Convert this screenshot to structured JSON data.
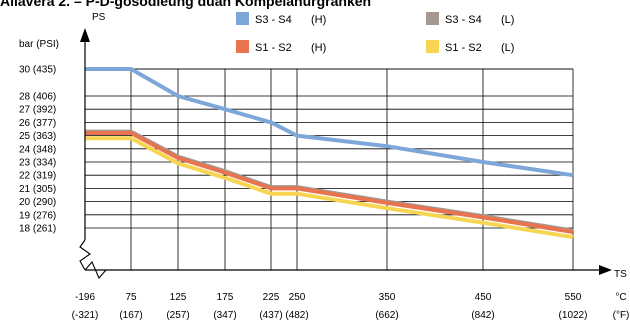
{
  "title": "Allavera 2. – P-D-gosodleung duan Kompelanurgranken",
  "chart_data": {
    "type": "line",
    "yaxis_name": "PS",
    "yaxis_unit": "bar (PSI)",
    "xaxis_name": "TS",
    "xaxis_units": [
      "°C",
      "(°F)"
    ],
    "y_ticks": [
      {
        "value": 30,
        "label": "30 (435)"
      },
      {
        "value": 28,
        "label": "28 (406)"
      },
      {
        "value": 27,
        "label": "27 (392)"
      },
      {
        "value": 26,
        "label": "26 (377)"
      },
      {
        "value": 25,
        "label": "25 (363)"
      },
      {
        "value": 24,
        "label": "24 (348)"
      },
      {
        "value": 23,
        "label": "23 (334)"
      },
      {
        "value": 22,
        "label": "22 (319)"
      },
      {
        "value": 21,
        "label": "21 (305)"
      },
      {
        "value": 20,
        "label": "20 (290)"
      },
      {
        "value": 19,
        "label": "19 (276)"
      },
      {
        "value": 18,
        "label": "18 (261)"
      }
    ],
    "x_ticks": [
      {
        "value": -196,
        "c": "-196",
        "f": "(-321)"
      },
      {
        "value": 75,
        "c": "75",
        "f": "(167)"
      },
      {
        "value": 125,
        "c": "125",
        "f": "(257)"
      },
      {
        "value": 175,
        "c": "175",
        "f": "(347)"
      },
      {
        "value": 225,
        "c": "225",
        "f": "(437)"
      },
      {
        "value": 250,
        "c": "250",
        "f": "(482)"
      },
      {
        "value": 350,
        "c": "350",
        "f": "(662)"
      },
      {
        "value": 450,
        "c": "450",
        "f": "(842)"
      },
      {
        "value": 550,
        "c": "550",
        "f": "(1022)"
      }
    ],
    "series": [
      {
        "name": "S3 - S4",
        "tag": "(H)",
        "color": "#7da7d9",
        "points": [
          [
            -196,
            30
          ],
          [
            75,
            30
          ],
          [
            125,
            28
          ],
          [
            175,
            27
          ],
          [
            225,
            26
          ],
          [
            250,
            25
          ],
          [
            350,
            24.2
          ],
          [
            450,
            23
          ],
          [
            550,
            22
          ]
        ]
      },
      {
        "name": "S3 - S4",
        "tag": "(L)",
        "color": "#a49891",
        "points": [
          [
            -196,
            25.3
          ],
          [
            75,
            25.3
          ],
          [
            125,
            23.4
          ],
          [
            175,
            22.3
          ],
          [
            225,
            21.1
          ],
          [
            250,
            21.1
          ],
          [
            350,
            20.0
          ],
          [
            450,
            18.9
          ],
          [
            550,
            17.8
          ]
        ]
      },
      {
        "name": "S1 - S2",
        "tag": "(H)",
        "color": "#e8734e",
        "points": [
          [
            -196,
            25.2
          ],
          [
            75,
            25.2
          ],
          [
            125,
            23.3
          ],
          [
            175,
            22.2
          ],
          [
            225,
            21.0
          ],
          [
            250,
            21.0
          ],
          [
            350,
            19.9
          ],
          [
            450,
            18.8
          ],
          [
            550,
            17.7
          ]
        ]
      },
      {
        "name": "S1 - S2",
        "tag": "(L)",
        "color": "#f7d552",
        "points": [
          [
            -196,
            24.8
          ],
          [
            75,
            24.8
          ],
          [
            125,
            22.9
          ],
          [
            175,
            21.8
          ],
          [
            225,
            20.6
          ],
          [
            250,
            20.6
          ],
          [
            350,
            19.5
          ],
          [
            450,
            18.4
          ],
          [
            550,
            17.3
          ]
        ]
      }
    ],
    "legend": {
      "placement": "top",
      "order": [
        0,
        1,
        2,
        3
      ]
    },
    "grid": true
  }
}
